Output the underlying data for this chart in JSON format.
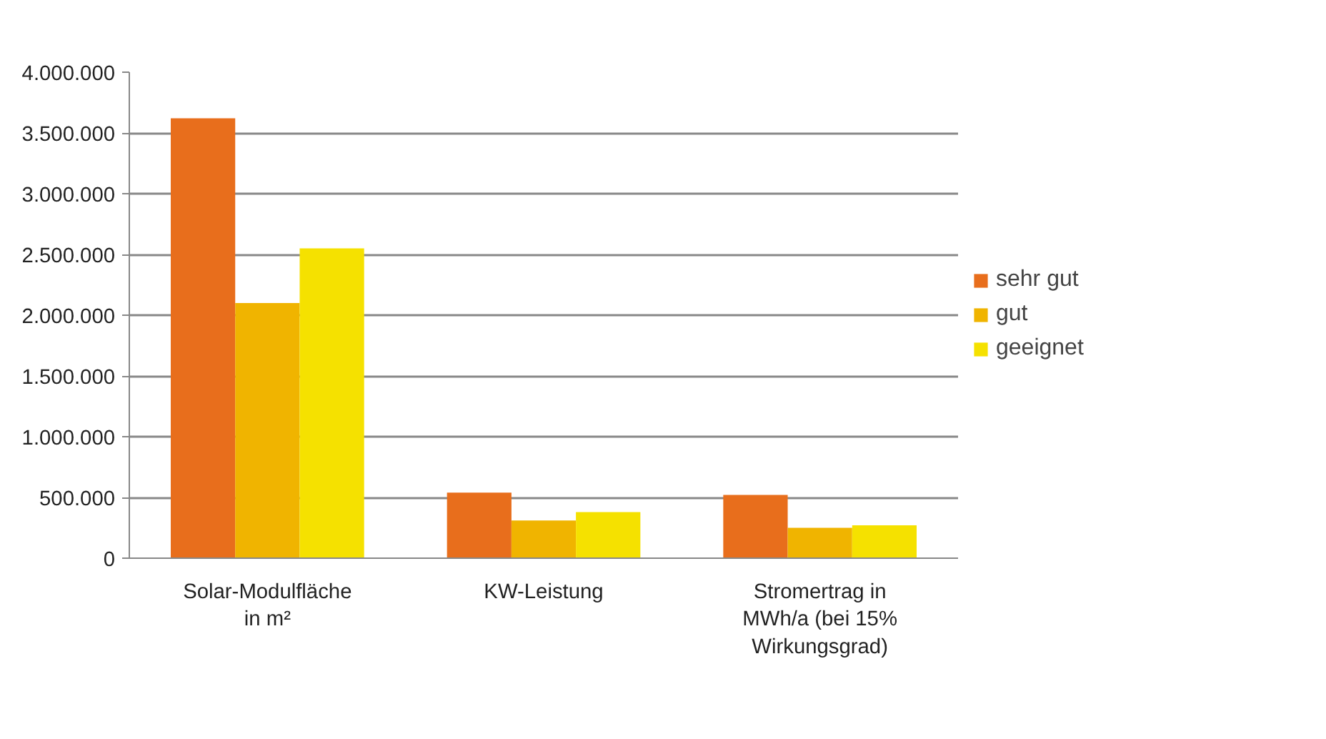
{
  "chart_data": {
    "type": "bar",
    "categories": [
      "Solar-Modulfläche\nin m²",
      "KW-Leistung",
      "Stromertrag in\nMWh/a (bei 15%\nWirkungsgrad)"
    ],
    "series": [
      {
        "name": "sehr gut",
        "color": "#e86e1c",
        "values": [
          3620000,
          540000,
          520000
        ]
      },
      {
        "name": "gut",
        "color": "#f0b400",
        "values": [
          2100000,
          310000,
          250000
        ]
      },
      {
        "name": "geeignet",
        "color": "#f5e100",
        "values": [
          2550000,
          380000,
          270000
        ]
      }
    ],
    "ylim": [
      0,
      4000000
    ],
    "yticks": [
      {
        "value": 0,
        "label": "0"
      },
      {
        "value": 500000,
        "label": "500.000"
      },
      {
        "value": 1000000,
        "label": "1.000.000"
      },
      {
        "value": 1500000,
        "label": "1.500.000"
      },
      {
        "value": 2000000,
        "label": "2.000.000"
      },
      {
        "value": 2500000,
        "label": "2.500.000"
      },
      {
        "value": 3000000,
        "label": "3.000.000"
      },
      {
        "value": 3500000,
        "label": "3.500.000"
      },
      {
        "value": 4000000,
        "label": "4.000.000"
      }
    ],
    "grid": "y",
    "legend": "right"
  }
}
